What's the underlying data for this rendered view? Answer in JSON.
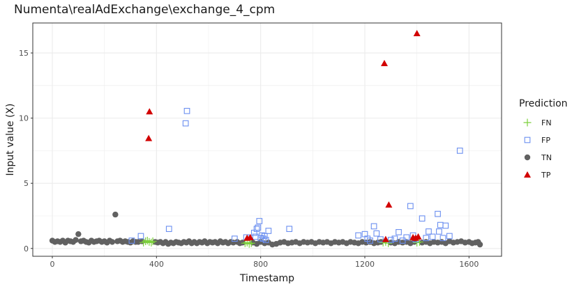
{
  "chart_data": {
    "type": "scatter",
    "title": "Numenta\\realAdExchange\\exchange_4_cpm",
    "xlabel": "Timestamp",
    "ylabel": "Input value (X)",
    "xlim": [
      -75,
      1725
    ],
    "ylim": [
      -0.6,
      17.3
    ],
    "x_ticks": [
      0,
      400,
      800,
      1200,
      1600
    ],
    "y_ticks": [
      0,
      5,
      10,
      15
    ],
    "grid": true,
    "legend": {
      "title": "Prediction",
      "placement": "right",
      "entries": [
        "FN",
        "FP",
        "TN",
        "TP"
      ]
    },
    "colors": {
      "FN": "#7cd03c",
      "FP": "#6b8ff0",
      "TN": "#616161",
      "TP": "#d20000"
    },
    "series": [
      {
        "name": "FN",
        "marker": "plus",
        "points": [
          [
            350,
            0.45
          ],
          [
            358,
            0.55
          ],
          [
            365,
            0.6
          ],
          [
            372,
            0.5
          ],
          [
            380,
            0.45
          ],
          [
            386,
            0.55
          ],
          [
            740,
            0.4
          ],
          [
            748,
            0.45
          ],
          [
            756,
            0.35
          ],
          [
            764,
            0.4
          ],
          [
            1270,
            0.45
          ],
          [
            1280,
            0.5
          ],
          [
            1290,
            0.4
          ],
          [
            1400,
            0.45
          ],
          [
            1410,
            0.5
          ]
        ]
      },
      {
        "name": "FP",
        "marker": "square",
        "points": [
          [
            305,
            0.6
          ],
          [
            340,
            0.95
          ],
          [
            448,
            1.5
          ],
          [
            512,
            9.6
          ],
          [
            517,
            10.55
          ],
          [
            700,
            0.75
          ],
          [
            745,
            0.85
          ],
          [
            775,
            1.2
          ],
          [
            780,
            0.9
          ],
          [
            785,
            1.5
          ],
          [
            790,
            1.6
          ],
          [
            795,
            2.1
          ],
          [
            800,
            0.8
          ],
          [
            805,
            1.0
          ],
          [
            810,
            0.75
          ],
          [
            815,
            0.95
          ],
          [
            820,
            0.65
          ],
          [
            830,
            1.35
          ],
          [
            910,
            1.5
          ],
          [
            1175,
            1.0
          ],
          [
            1200,
            1.1
          ],
          [
            1210,
            0.75
          ],
          [
            1220,
            0.6
          ],
          [
            1235,
            1.7
          ],
          [
            1245,
            1.15
          ],
          [
            1260,
            0.7
          ],
          [
            1300,
            0.65
          ],
          [
            1315,
            0.75
          ],
          [
            1330,
            1.25
          ],
          [
            1345,
            0.6
          ],
          [
            1360,
            0.85
          ],
          [
            1375,
            3.25
          ],
          [
            1385,
            1.0
          ],
          [
            1395,
            0.7
          ],
          [
            1420,
            2.3
          ],
          [
            1435,
            0.8
          ],
          [
            1445,
            1.3
          ],
          [
            1460,
            0.9
          ],
          [
            1480,
            2.65
          ],
          [
            1485,
            1.3
          ],
          [
            1490,
            1.8
          ],
          [
            1500,
            0.8
          ],
          [
            1510,
            1.75
          ],
          [
            1525,
            0.95
          ],
          [
            1565,
            7.5
          ]
        ]
      },
      {
        "name": "TN",
        "marker": "circle",
        "points": [
          [
            0,
            0.6
          ],
          [
            10,
            0.5
          ],
          [
            20,
            0.55
          ],
          [
            30,
            0.5
          ],
          [
            40,
            0.6
          ],
          [
            50,
            0.45
          ],
          [
            60,
            0.6
          ],
          [
            70,
            0.55
          ],
          [
            80,
            0.5
          ],
          [
            90,
            0.65
          ],
          [
            100,
            1.1
          ],
          [
            110,
            0.55
          ],
          [
            120,
            0.6
          ],
          [
            130,
            0.5
          ],
          [
            140,
            0.45
          ],
          [
            150,
            0.6
          ],
          [
            160,
            0.5
          ],
          [
            170,
            0.55
          ],
          [
            180,
            0.6
          ],
          [
            190,
            0.5
          ],
          [
            200,
            0.55
          ],
          [
            210,
            0.45
          ],
          [
            220,
            0.6
          ],
          [
            230,
            0.5
          ],
          [
            242,
            2.6
          ],
          [
            250,
            0.55
          ],
          [
            260,
            0.6
          ],
          [
            270,
            0.5
          ],
          [
            280,
            0.55
          ],
          [
            290,
            0.5
          ],
          [
            300,
            0.45
          ],
          [
            310,
            0.55
          ],
          [
            320,
            0.5
          ],
          [
            330,
            0.5
          ],
          [
            345,
            0.55
          ],
          [
            395,
            0.5
          ],
          [
            405,
            0.45
          ],
          [
            415,
            0.5
          ],
          [
            425,
            0.4
          ],
          [
            435,
            0.5
          ],
          [
            445,
            0.35
          ],
          [
            455,
            0.45
          ],
          [
            465,
            0.4
          ],
          [
            475,
            0.5
          ],
          [
            485,
            0.45
          ],
          [
            495,
            0.4
          ],
          [
            505,
            0.5
          ],
          [
            515,
            0.45
          ],
          [
            525,
            0.55
          ],
          [
            535,
            0.4
          ],
          [
            545,
            0.5
          ],
          [
            555,
            0.4
          ],
          [
            565,
            0.5
          ],
          [
            575,
            0.45
          ],
          [
            585,
            0.55
          ],
          [
            595,
            0.4
          ],
          [
            605,
            0.5
          ],
          [
            615,
            0.45
          ],
          [
            625,
            0.5
          ],
          [
            635,
            0.4
          ],
          [
            645,
            0.55
          ],
          [
            655,
            0.45
          ],
          [
            665,
            0.5
          ],
          [
            675,
            0.4
          ],
          [
            685,
            0.5
          ],
          [
            695,
            0.45
          ],
          [
            710,
            0.5
          ],
          [
            720,
            0.4
          ],
          [
            730,
            0.45
          ],
          [
            770,
            0.45
          ],
          [
            785,
            0.35
          ],
          [
            800,
            0.5
          ],
          [
            815,
            0.4
          ],
          [
            830,
            0.45
          ],
          [
            845,
            0.3
          ],
          [
            860,
            0.35
          ],
          [
            875,
            0.45
          ],
          [
            890,
            0.5
          ],
          [
            905,
            0.4
          ],
          [
            920,
            0.45
          ],
          [
            935,
            0.5
          ],
          [
            950,
            0.4
          ],
          [
            965,
            0.5
          ],
          [
            980,
            0.45
          ],
          [
            995,
            0.5
          ],
          [
            1010,
            0.4
          ],
          [
            1025,
            0.5
          ],
          [
            1040,
            0.45
          ],
          [
            1055,
            0.5
          ],
          [
            1070,
            0.4
          ],
          [
            1085,
            0.5
          ],
          [
            1100,
            0.45
          ],
          [
            1115,
            0.5
          ],
          [
            1130,
            0.4
          ],
          [
            1145,
            0.5
          ],
          [
            1160,
            0.45
          ],
          [
            1175,
            0.4
          ],
          [
            1190,
            0.5
          ],
          [
            1205,
            0.45
          ],
          [
            1220,
            0.5
          ],
          [
            1235,
            0.4
          ],
          [
            1250,
            0.45
          ],
          [
            1262,
            0.5
          ],
          [
            1300,
            0.45
          ],
          [
            1315,
            0.4
          ],
          [
            1330,
            0.5
          ],
          [
            1345,
            0.45
          ],
          [
            1360,
            0.5
          ],
          [
            1375,
            0.4
          ],
          [
            1390,
            0.5
          ],
          [
            1420,
            0.45
          ],
          [
            1435,
            0.5
          ],
          [
            1450,
            0.4
          ],
          [
            1465,
            0.5
          ],
          [
            1480,
            0.45
          ],
          [
            1495,
            0.5
          ],
          [
            1510,
            0.4
          ],
          [
            1525,
            0.55
          ],
          [
            1540,
            0.45
          ],
          [
            1555,
            0.5
          ],
          [
            1570,
            0.55
          ],
          [
            1585,
            0.45
          ],
          [
            1600,
            0.5
          ],
          [
            1612,
            0.4
          ],
          [
            1625,
            0.45
          ],
          [
            1635,
            0.5
          ],
          [
            1642,
            0.3
          ]
        ]
      },
      {
        "name": "TP",
        "marker": "triangle",
        "points": [
          [
            370,
            8.45
          ],
          [
            373,
            10.5
          ],
          [
            748,
            0.8
          ],
          [
            760,
            0.85
          ],
          [
            1275,
            14.2
          ],
          [
            1280,
            0.7
          ],
          [
            1292,
            3.35
          ],
          [
            1385,
            0.85
          ],
          [
            1395,
            0.8
          ],
          [
            1400,
            16.5
          ],
          [
            1405,
            0.9
          ]
        ]
      }
    ]
  }
}
